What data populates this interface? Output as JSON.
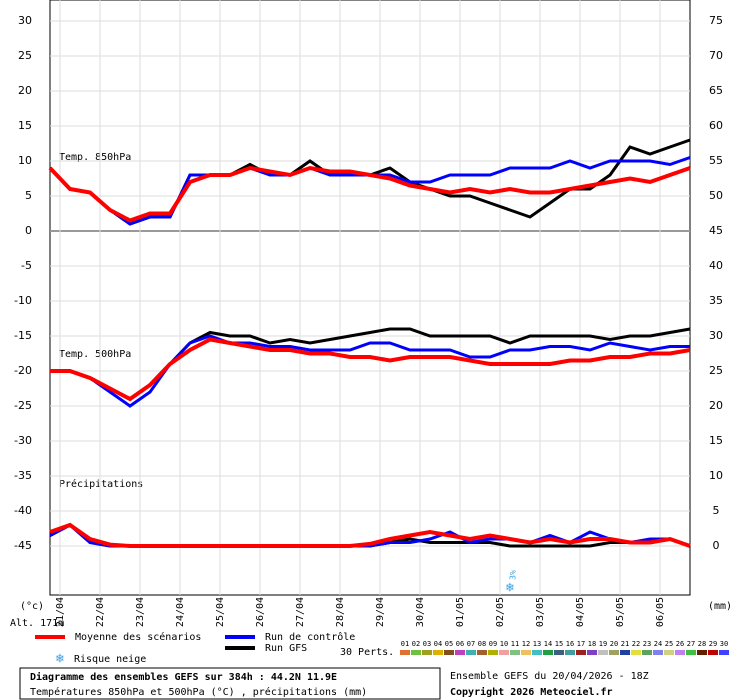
{
  "chart_data": {
    "type": "line",
    "title": "Diagramme des ensembles GEFS sur 384h : 44.2N 11.9E",
    "subtitle": "Températures 850hPa et 500hPa (°C) , précipitations (mm)",
    "run_label": "Ensemble GEFS du 20/04/2026 - 18Z",
    "copyright": "Copyright 2026 Meteociel.fr",
    "y_label": "(°c)",
    "y2_label": "(mm)",
    "altitude": "Alt. 171m",
    "annotations": [
      "Temp. 850hPa",
      "Temp. 500hPa",
      "Précipitations"
    ],
    "x": [
      0,
      12,
      24,
      36,
      48,
      60,
      72,
      84,
      96,
      108,
      120,
      132,
      144,
      156,
      168,
      180,
      192,
      204,
      216,
      228,
      240,
      252,
      264,
      276,
      288,
      300,
      312,
      324,
      336,
      348,
      360,
      372,
      384
    ],
    "xlim": [
      0,
      384
    ],
    "xticks": [
      {
        "value": 6,
        "label": "21/04"
      },
      {
        "value": 30,
        "label": "22/04"
      },
      {
        "value": 54,
        "label": "23/04"
      },
      {
        "value": 78,
        "label": "24/04"
      },
      {
        "value": 102,
        "label": "25/04"
      },
      {
        "value": 126,
        "label": "26/04"
      },
      {
        "value": 150,
        "label": "27/04"
      },
      {
        "value": 174,
        "label": "28/04"
      },
      {
        "value": 198,
        "label": "29/04"
      },
      {
        "value": 222,
        "label": "30/04"
      },
      {
        "value": 246,
        "label": "01/05"
      },
      {
        "value": 270,
        "label": "02/05"
      },
      {
        "value": 294,
        "label": "03/05"
      },
      {
        "value": 318,
        "label": "04/05"
      },
      {
        "value": 342,
        "label": "05/05"
      },
      {
        "value": 366,
        "label": "06/05"
      }
    ],
    "ylim": [
      -52,
      33
    ],
    "yticks": [
      30,
      25,
      20,
      15,
      10,
      5,
      0,
      -5,
      -10,
      -15,
      -20,
      -25,
      -30,
      -35,
      -40,
      -45
    ],
    "y2lim": [
      -7,
      78
    ],
    "y2ticks": [
      75,
      70,
      65,
      60,
      55,
      50,
      45,
      40,
      35,
      30,
      25,
      20,
      15,
      10,
      5,
      0
    ],
    "grid": true,
    "series": [
      {
        "name": "Moyenne des scénarios",
        "color": "#ff0000",
        "t850": [
          9,
          6,
          5.5,
          3,
          1.5,
          2.5,
          2.5,
          7,
          8,
          8,
          9,
          8.5,
          8,
          9,
          8.5,
          8.5,
          8,
          7.5,
          6.5,
          6,
          5.5,
          6,
          5.5,
          6,
          5.5,
          5.5,
          6,
          6.5,
          7,
          7.5,
          7,
          8,
          9
        ],
        "t500": [
          -20,
          -20,
          -21,
          -22.5,
          -24,
          -22,
          -19,
          -17,
          -15.5,
          -16,
          -16.5,
          -17,
          -17,
          -17.5,
          -17.5,
          -18,
          -18,
          -18.5,
          -18,
          -18,
          -18,
          -18.5,
          -19,
          -19,
          -19,
          -19,
          -18.5,
          -18.5,
          -18,
          -18,
          -17.5,
          -17.5,
          -17
        ],
        "precip": [
          2,
          3,
          1,
          0.2,
          0,
          0,
          0,
          0,
          0,
          0,
          0,
          0,
          0,
          0,
          0,
          0,
          0.3,
          1,
          1.5,
          2,
          1.5,
          1,
          1.5,
          1,
          0.5,
          1,
          0.5,
          1,
          1,
          0.5,
          0.5,
          1,
          0
        ]
      },
      {
        "name": "Run de contrôle",
        "color": "#0000ff",
        "t850": [
          9,
          6,
          5.5,
          3,
          1,
          2,
          2,
          8,
          8,
          8,
          9,
          8,
          8,
          9,
          8,
          8,
          8,
          8,
          7,
          7,
          8,
          8,
          8,
          9,
          9,
          9,
          10,
          9,
          10,
          10,
          10,
          9.5,
          10.5
        ],
        "t500": [
          -20,
          -20,
          -21,
          -23,
          -25,
          -23,
          -19,
          -16,
          -15,
          -16,
          -16,
          -16.5,
          -16.5,
          -17,
          -17,
          -17,
          -16,
          -16,
          -17,
          -17,
          -17,
          -18,
          -18,
          -17,
          -17,
          -16.5,
          -16.5,
          -17,
          -16,
          -16.5,
          -17,
          -16.5,
          -16.5
        ],
        "precip": [
          1.5,
          3,
          0.5,
          0,
          0,
          0,
          0,
          0,
          0,
          0,
          0,
          0,
          0,
          0,
          0,
          0,
          0,
          0.5,
          0.5,
          1,
          2,
          0.5,
          1,
          1,
          0.5,
          1.5,
          0.5,
          2,
          1,
          0.5,
          1,
          1,
          0
        ]
      },
      {
        "name": "Run GFS",
        "color": "#000000",
        "t850": [
          9,
          6,
          5.5,
          3,
          1,
          2,
          2,
          8,
          8,
          8,
          9.5,
          8,
          8,
          10,
          8,
          8,
          8,
          9,
          7,
          6,
          5,
          5,
          4,
          3,
          2,
          4,
          6,
          6,
          8,
          12,
          11,
          12,
          13
        ],
        "t500": [
          -20,
          -20,
          -21,
          -22.5,
          -24,
          -22,
          -19,
          -16,
          -14.5,
          -15,
          -15,
          -16,
          -15.5,
          -16,
          -15.5,
          -15,
          -14.5,
          -14,
          -14,
          -15,
          -15,
          -15,
          -15,
          -16,
          -15,
          -15,
          -15,
          -15,
          -15.5,
          -15,
          -15,
          -14.5,
          -14
        ],
        "precip": [
          1.5,
          3,
          0.5,
          0,
          0,
          0,
          0,
          0,
          0,
          0,
          0,
          0,
          0,
          0,
          0,
          0,
          0,
          0.5,
          1,
          0.5,
          0.5,
          0.5,
          0.5,
          0,
          0,
          0,
          0,
          0,
          0.5,
          0.5,
          0.5,
          1,
          0
        ]
      }
    ],
    "snow_risk": {
      "name": "Risque neige",
      "x": [
        276
      ],
      "values": [
        3
      ],
      "value_labels": [
        "3%"
      ]
    },
    "perturbations_label": "30 Perts.",
    "perturbations": [
      {
        "name": "01",
        "color": "#e07030"
      },
      {
        "name": "02",
        "color": "#70c040"
      },
      {
        "name": "03",
        "color": "#a0a020"
      },
      {
        "name": "04",
        "color": "#e0b000"
      },
      {
        "name": "05",
        "color": "#805020"
      },
      {
        "name": "06",
        "color": "#c040c0"
      },
      {
        "name": "07",
        "color": "#40b0b0"
      },
      {
        "name": "08",
        "color": "#a06030"
      },
      {
        "name": "09",
        "color": "#b0b000"
      },
      {
        "name": "10",
        "color": "#f0a0a0"
      },
      {
        "name": "11",
        "color": "#80c080"
      },
      {
        "name": "12",
        "color": "#f0c060"
      },
      {
        "name": "13",
        "color": "#40c0c0"
      },
      {
        "name": "14",
        "color": "#20a040"
      },
      {
        "name": "15",
        "color": "#406080"
      },
      {
        "name": "16",
        "color": "#40a0a0"
      },
      {
        "name": "17",
        "color": "#a02020"
      },
      {
        "name": "18",
        "color": "#8040c0"
      },
      {
        "name": "19",
        "color": "#c0c0c0"
      },
      {
        "name": "20",
        "color": "#a0a060"
      },
      {
        "name": "21",
        "color": "#2040a0"
      },
      {
        "name": "22",
        "color": "#e0e040"
      },
      {
        "name": "23",
        "color": "#60a060"
      },
      {
        "name": "24",
        "color": "#8080f0"
      },
      {
        "name": "25",
        "color": "#d0d080"
      },
      {
        "name": "26",
        "color": "#c080f0"
      },
      {
        "name": "27",
        "color": "#40c040"
      },
      {
        "name": "28",
        "color": "#602000"
      },
      {
        "name": "29",
        "color": "#c00000"
      },
      {
        "name": "30",
        "color": "#4040ff"
      }
    ]
  }
}
